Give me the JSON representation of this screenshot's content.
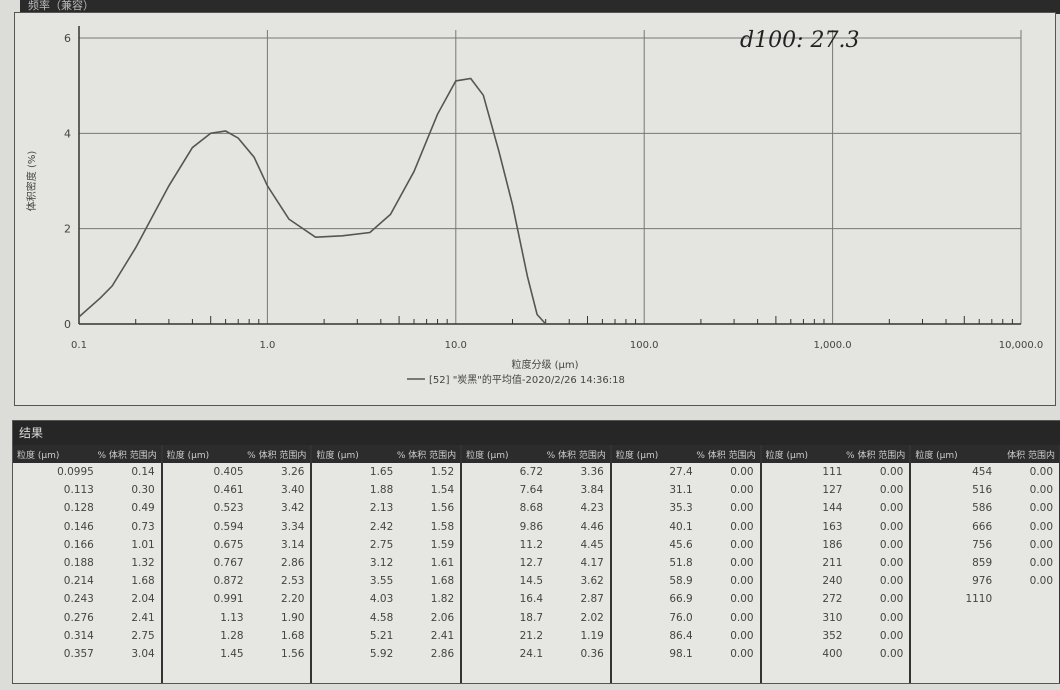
{
  "header": {
    "title": "频率（兼容）"
  },
  "handwritten_note": "d100: 27.3",
  "chart_data": {
    "type": "line",
    "title": "",
    "xlabel": "粒度分级 (μm)",
    "ylabel": "体积密度 (%)",
    "xscale": "log",
    "xlim": [
      0.1,
      10000
    ],
    "ylim": [
      0,
      6
    ],
    "xticks": [
      "0.1",
      "1.0",
      "10.0",
      "100.0",
      "1,000.0",
      "10,000.0"
    ],
    "yticks": [
      "0",
      "2",
      "4",
      "6"
    ],
    "grid": true,
    "legend_position": "bottom",
    "series": [
      {
        "name": "[52] \"炭黑\"的平均值-2020/2/26 14:36:18",
        "color": "#555555",
        "x": [
          0.1,
          0.13,
          0.15,
          0.2,
          0.3,
          0.4,
          0.5,
          0.6,
          0.7,
          0.85,
          1.0,
          1.3,
          1.8,
          2.5,
          3.5,
          4.5,
          6,
          8,
          10,
          12,
          14,
          17,
          20,
          24,
          27,
          30
        ],
        "y": [
          0.15,
          0.55,
          0.8,
          1.6,
          2.9,
          3.7,
          4.0,
          4.05,
          3.9,
          3.5,
          2.9,
          2.2,
          1.82,
          1.85,
          1.92,
          2.3,
          3.2,
          4.4,
          5.1,
          5.15,
          4.8,
          3.6,
          2.5,
          1.0,
          0.2,
          0
        ]
      }
    ]
  },
  "results": {
    "title": "结果",
    "col_size": "粒度 (μm)",
    "col_vol": "% 体积 范围内",
    "col_vol_last": "体积 范围内",
    "groups": [
      {
        "rows": [
          [
            "0.0995",
            "0.14"
          ],
          [
            "0.113",
            "0.30"
          ],
          [
            "0.128",
            "0.49"
          ],
          [
            "0.146",
            "0.73"
          ],
          [
            "0.166",
            "1.01"
          ],
          [
            "0.188",
            "1.32"
          ],
          [
            "0.214",
            "1.68"
          ],
          [
            "0.243",
            "2.04"
          ],
          [
            "0.276",
            "2.41"
          ],
          [
            "0.314",
            "2.75"
          ],
          [
            "0.357",
            "3.04"
          ]
        ]
      },
      {
        "rows": [
          [
            "0.405",
            "3.26"
          ],
          [
            "0.461",
            "3.40"
          ],
          [
            "0.523",
            "3.42"
          ],
          [
            "0.594",
            "3.34"
          ],
          [
            "0.675",
            "3.14"
          ],
          [
            "0.767",
            "2.86"
          ],
          [
            "0.872",
            "2.53"
          ],
          [
            "0.991",
            "2.20"
          ],
          [
            "1.13",
            "1.90"
          ],
          [
            "1.28",
            "1.68"
          ],
          [
            "1.45",
            "1.56"
          ]
        ]
      },
      {
        "rows": [
          [
            "1.65",
            "1.52"
          ],
          [
            "1.88",
            "1.54"
          ],
          [
            "2.13",
            "1.56"
          ],
          [
            "2.42",
            "1.58"
          ],
          [
            "2.75",
            "1.59"
          ],
          [
            "3.12",
            "1.61"
          ],
          [
            "3.55",
            "1.68"
          ],
          [
            "4.03",
            "1.82"
          ],
          [
            "4.58",
            "2.06"
          ],
          [
            "5.21",
            "2.41"
          ],
          [
            "5.92",
            "2.86"
          ]
        ]
      },
      {
        "rows": [
          [
            "6.72",
            "3.36"
          ],
          [
            "7.64",
            "3.84"
          ],
          [
            "8.68",
            "4.23"
          ],
          [
            "9.86",
            "4.46"
          ],
          [
            "11.2",
            "4.45"
          ],
          [
            "12.7",
            "4.17"
          ],
          [
            "14.5",
            "3.62"
          ],
          [
            "16.4",
            "2.87"
          ],
          [
            "18.7",
            "2.02"
          ],
          [
            "21.2",
            "1.19"
          ],
          [
            "24.1",
            "0.36"
          ]
        ]
      },
      {
        "rows": [
          [
            "27.4",
            "0.00"
          ],
          [
            "31.1",
            "0.00"
          ],
          [
            "35.3",
            "0.00"
          ],
          [
            "40.1",
            "0.00"
          ],
          [
            "45.6",
            "0.00"
          ],
          [
            "51.8",
            "0.00"
          ],
          [
            "58.9",
            "0.00"
          ],
          [
            "66.9",
            "0.00"
          ],
          [
            "76.0",
            "0.00"
          ],
          [
            "86.4",
            "0.00"
          ],
          [
            "98.1",
            "0.00"
          ]
        ]
      },
      {
        "rows": [
          [
            "111",
            "0.00"
          ],
          [
            "127",
            "0.00"
          ],
          [
            "144",
            "0.00"
          ],
          [
            "163",
            "0.00"
          ],
          [
            "186",
            "0.00"
          ],
          [
            "211",
            "0.00"
          ],
          [
            "240",
            "0.00"
          ],
          [
            "272",
            "0.00"
          ],
          [
            "310",
            "0.00"
          ],
          [
            "352",
            "0.00"
          ],
          [
            "400",
            "0.00"
          ]
        ]
      },
      {
        "rows": [
          [
            "454",
            "0.00"
          ],
          [
            "516",
            "0.00"
          ],
          [
            "586",
            "0.00"
          ],
          [
            "666",
            "0.00"
          ],
          [
            "756",
            "0.00"
          ],
          [
            "859",
            "0.00"
          ],
          [
            "976",
            "0.00"
          ],
          [
            "1110",
            ""
          ]
        ]
      }
    ]
  }
}
